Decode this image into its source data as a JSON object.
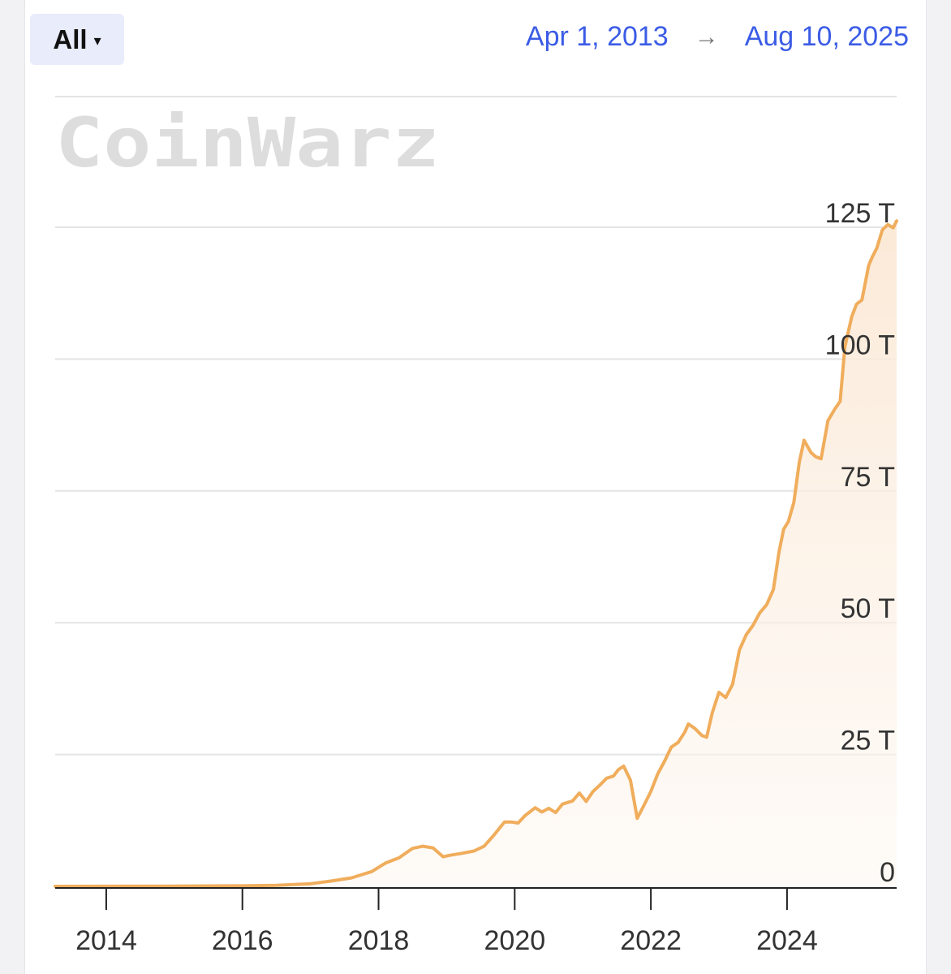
{
  "range_selector": {
    "label": "All",
    "caret": "▾"
  },
  "date_range": {
    "start": "Apr 1, 2013",
    "arrow": "→",
    "end": "Aug 10, 2025"
  },
  "watermark": {
    "text": "CoinWarz"
  },
  "colors": {
    "line": "#f0ad5c",
    "fill_top": "#fbe7d3",
    "grid": "#e4e4e4",
    "axis": "#222222",
    "link": "#3b5ce6"
  },
  "chart_data": {
    "type": "area",
    "title": "",
    "xlabel": "",
    "ylabel": "",
    "x_tick_labels": [
      "2014",
      "2016",
      "2018",
      "2020",
      "2022",
      "2024"
    ],
    "x_ticks": [
      2014,
      2016,
      2018,
      2020,
      2022,
      2024
    ],
    "y_tick_labels": [
      "0",
      "25 T",
      "50 T",
      "75 T",
      "100 T",
      "125 T"
    ],
    "y_ticks": [
      0,
      25,
      50,
      75,
      100,
      125
    ],
    "y_unit": "T",
    "xlim": [
      2013.25,
      2025.61
    ],
    "ylim": [
      0,
      128
    ],
    "grid": true,
    "series": [
      {
        "x": [
          2013.25,
          2014.0,
          2015.0,
          2016.0,
          2016.5,
          2017.0,
          2017.3,
          2017.6,
          2017.9,
          2018.1,
          2018.3,
          2018.5,
          2018.65,
          2018.8,
          2018.95,
          2019.05,
          2019.2,
          2019.4,
          2019.55,
          2019.7,
          2019.85,
          2019.95,
          2020.05,
          2020.15,
          2020.3,
          2020.4,
          2020.5,
          2020.6,
          2020.7,
          2020.85,
          2020.95,
          2021.05,
          2021.15,
          2021.25,
          2021.35,
          2021.45,
          2021.52,
          2021.6,
          2021.7,
          2021.8,
          2021.9,
          2022.0,
          2022.1,
          2022.2,
          2022.3,
          2022.4,
          2022.5,
          2022.55,
          2022.65,
          2022.75,
          2022.82,
          2022.9,
          2023.0,
          2023.1,
          2023.2,
          2023.3,
          2023.4,
          2023.5,
          2023.6,
          2023.7,
          2023.8,
          2023.88,
          2023.95,
          2024.02,
          2024.1,
          2024.18,
          2024.25,
          2024.35,
          2024.42,
          2024.5,
          2024.6,
          2024.7,
          2024.78,
          2024.85,
          2024.95,
          2025.02,
          2025.1,
          2025.2,
          2025.25,
          2025.32,
          2025.4,
          2025.48,
          2025.56,
          2025.61
        ],
        "y": [
          0.0,
          0.01,
          0.04,
          0.1,
          0.2,
          0.5,
          1.0,
          1.6,
          2.8,
          4.4,
          5.4,
          7.2,
          7.6,
          7.3,
          5.6,
          5.9,
          6.2,
          6.7,
          7.6,
          9.8,
          12.2,
          12.2,
          12.0,
          13.4,
          14.9,
          14.1,
          14.8,
          14.0,
          15.6,
          16.2,
          17.7,
          16.1,
          18.0,
          19.2,
          20.5,
          20.9,
          22.1,
          22.8,
          20.1,
          12.9,
          15.4,
          18.0,
          21.3,
          23.7,
          26.4,
          27.3,
          29.3,
          30.8,
          29.9,
          28.6,
          28.3,
          32.8,
          36.8,
          35.8,
          38.3,
          44.8,
          47.7,
          49.5,
          51.9,
          53.4,
          56.3,
          63.3,
          67.7,
          69.2,
          72.8,
          80.4,
          84.6,
          82.3,
          81.5,
          81.1,
          88.3,
          90.5,
          92.0,
          102.3,
          108.0,
          110.4,
          111.2,
          117.8,
          119.3,
          121.1,
          124.5,
          125.5,
          124.9,
          126.2
        ]
      }
    ]
  }
}
